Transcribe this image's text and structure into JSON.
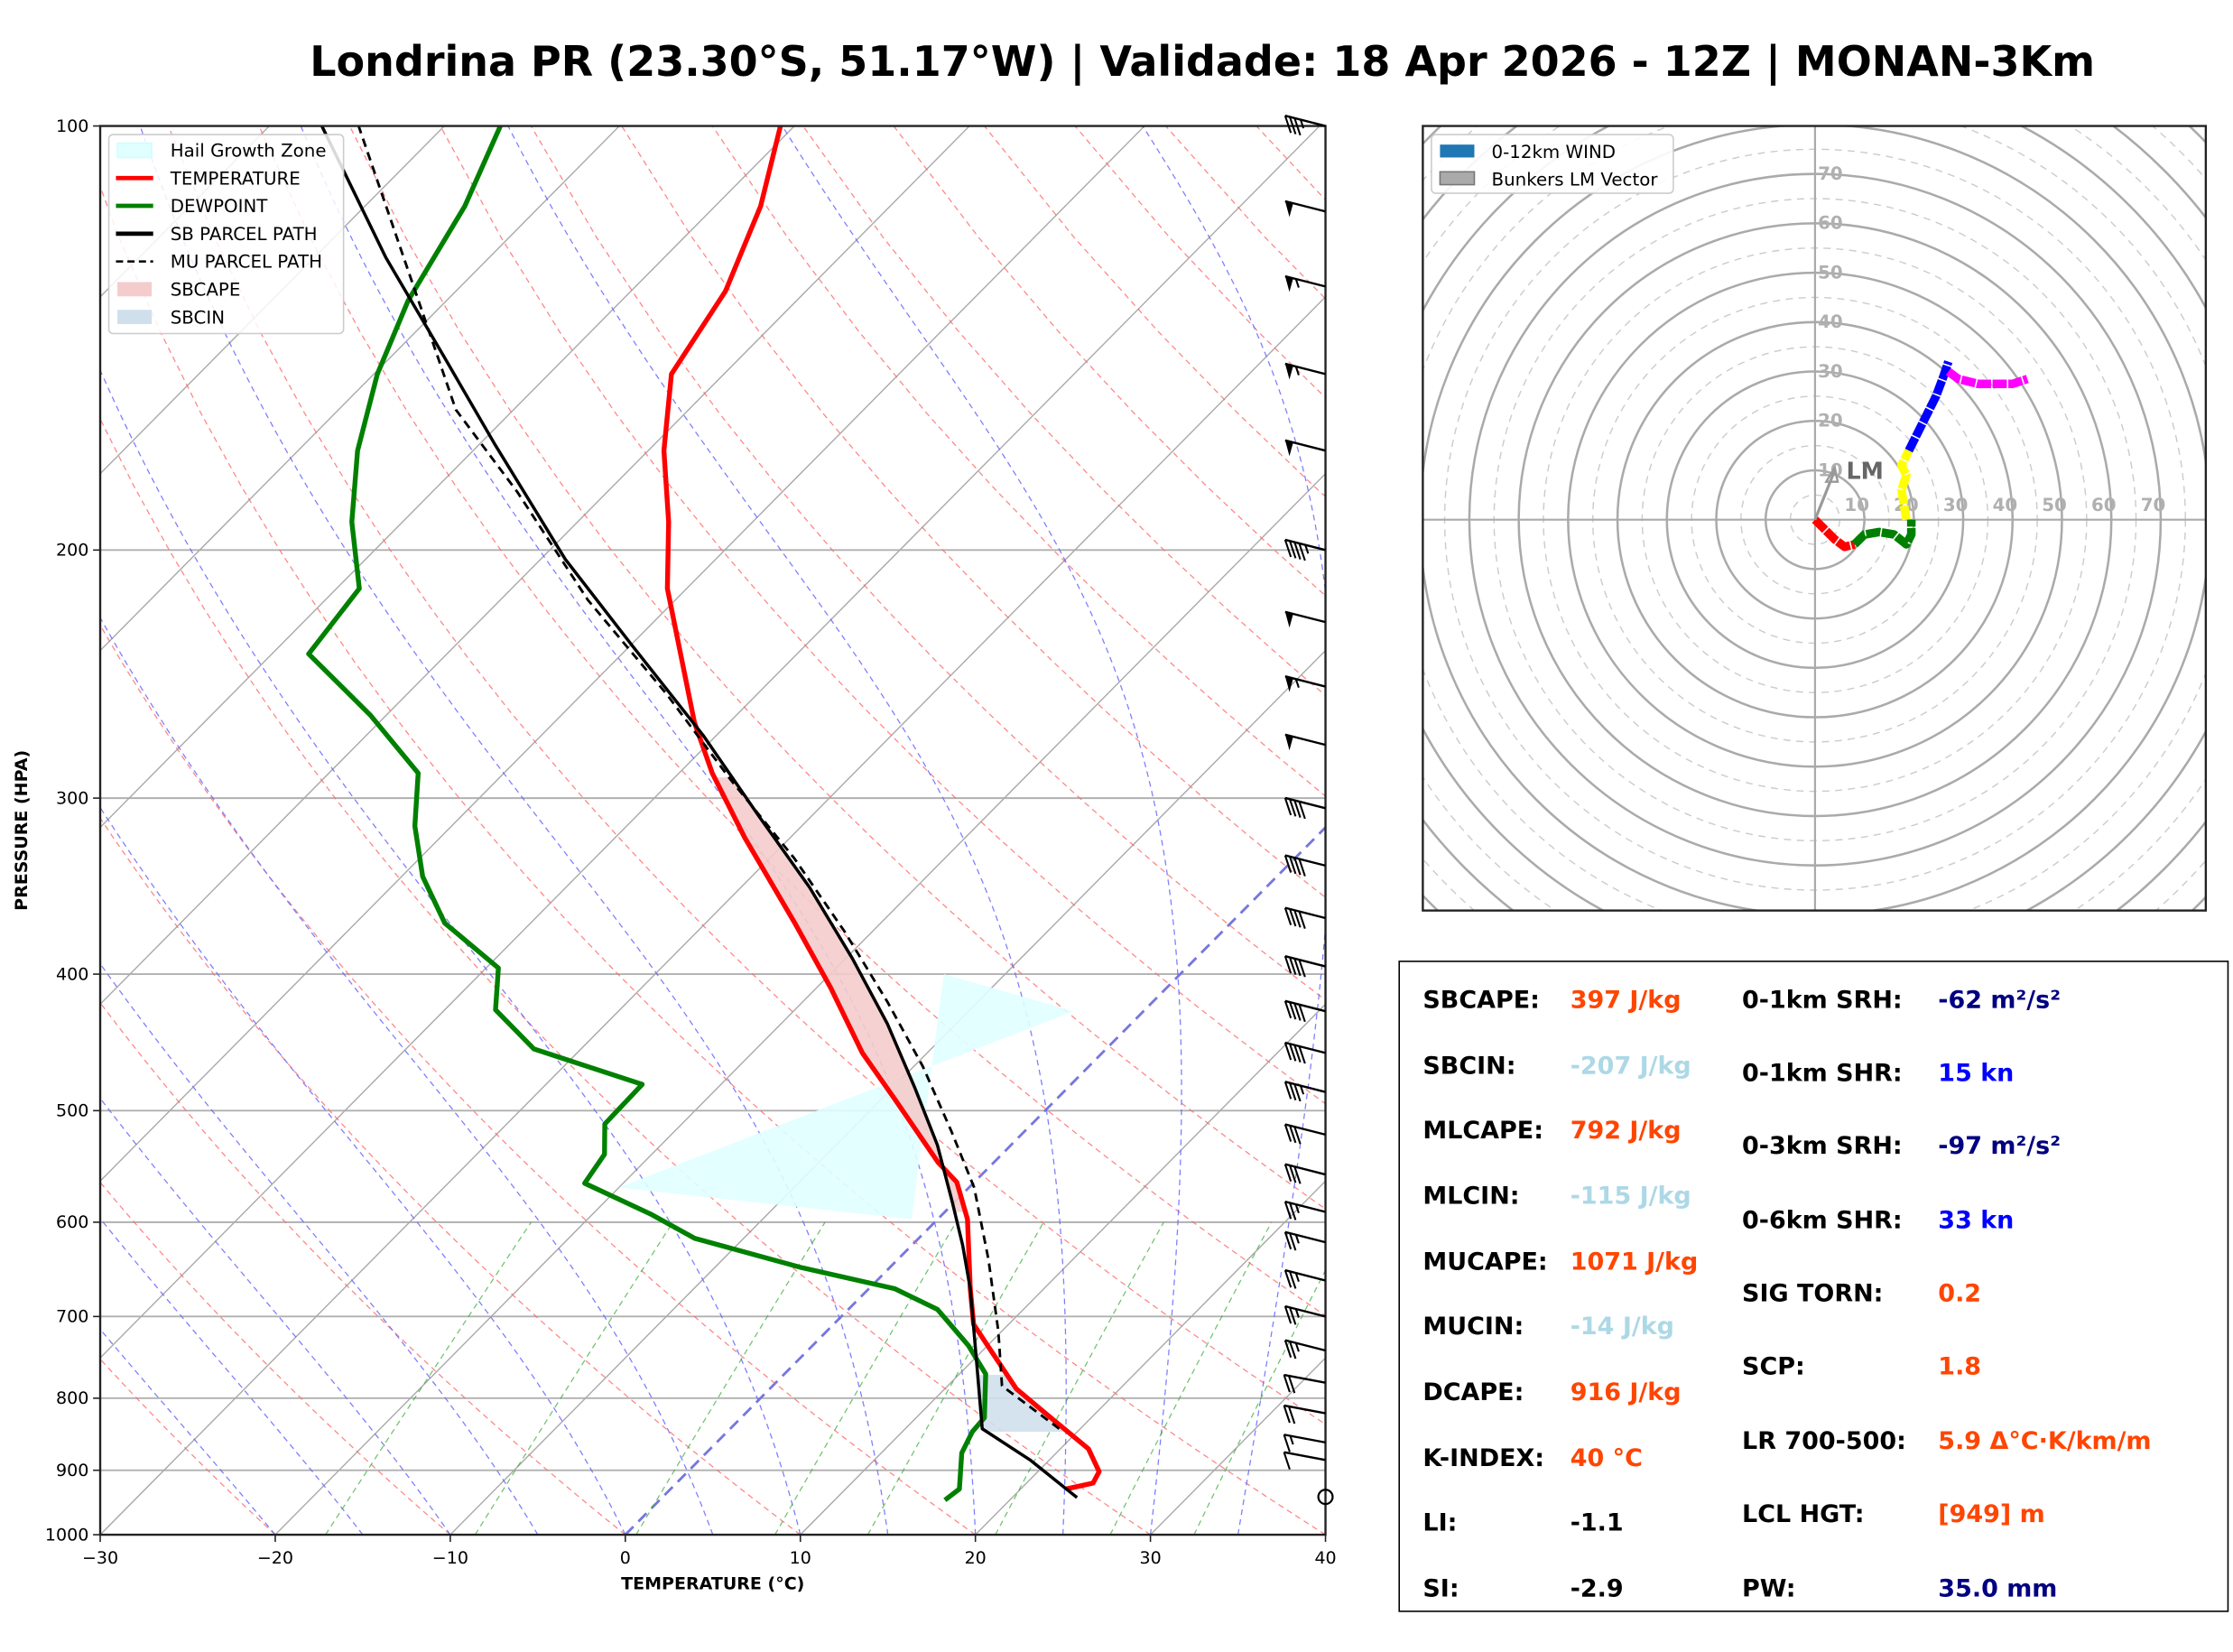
{
  "title": "Londrina PR (23.30°S, 51.17°W) | Validade: 18 Apr 2026 - 12Z | MONAN-3Km",
  "chart_data": [
    {
      "type": "line",
      "subtype": "skew-t log-p",
      "xlabel": "TEMPERATURE (°C)",
      "ylabel": "PRESSURE (HPA)",
      "xlim": [
        -30,
        40
      ],
      "ylim": [
        1000,
        100
      ],
      "yscale": "log",
      "xticks": [
        -30,
        -20,
        -10,
        0,
        10,
        20,
        30,
        40
      ],
      "xtick_labels": [
        "−30",
        "−20",
        "−10",
        "0",
        "10",
        "20",
        "30",
        "40"
      ],
      "yticks": [
        1000,
        900,
        800,
        700,
        600,
        500,
        400,
        300,
        200,
        100
      ],
      "ytick_labels": [
        "1000",
        "900",
        "800",
        "700",
        "600",
        "500",
        "400",
        "300",
        "200",
        "100"
      ],
      "grid": true,
      "legend_position": "top-left",
      "legend": [
        {
          "label": "Hail Growth Zone",
          "color": "#e0ffff",
          "kind": "patch"
        },
        {
          "label": "TEMPERATURE",
          "color": "#ff0000",
          "kind": "line"
        },
        {
          "label": "DEWPOINT",
          "color": "#008000",
          "kind": "line"
        },
        {
          "label": "SB PARCEL PATH",
          "color": "#000000",
          "kind": "line"
        },
        {
          "label": "MU PARCEL PATH",
          "color": "#000000",
          "kind": "dashed"
        },
        {
          "label": "SBCAPE",
          "color": "#f4cccc",
          "kind": "patch"
        },
        {
          "label": "SBCIN",
          "color": "#cfe0ec",
          "kind": "patch"
        }
      ],
      "series": [
        {
          "name": "TEMPERATURE",
          "color": "#ff0000",
          "p": [
            928,
            919,
            902,
            869,
            826,
            788,
            743,
            709,
            669,
            597,
            562,
            544,
            491,
            455,
            409,
            368,
            320,
            288,
            265,
            213,
            191,
            170,
            150,
            131,
            114,
            100
          ],
          "t": [
            22.6,
            23.8,
            23.5,
            21.6,
            17.7,
            14.1,
            10.7,
            8.0,
            5.8,
            1.7,
            -1.0,
            -3.2,
            -9.2,
            -13.7,
            -19.2,
            -24.9,
            -32.6,
            -38.1,
            -42.0,
            -51.1,
            -54.8,
            -59.1,
            -63.0,
            -64.6,
            -67.4,
            -70.8
          ]
        },
        {
          "name": "DEWPOINT",
          "color": "#008000",
          "p": [
            945,
            928,
            875,
            845,
            826,
            769,
            734,
            692,
            669,
            646,
            616,
            592,
            563,
            537,
            511,
            479,
            452,
            424,
            396,
            368,
            341,
            314,
            288,
            262,
            237,
            213,
            191,
            170,
            150,
            133,
            114,
            100
          ],
          "t": [
            16.3,
            16.5,
            14.6,
            14.0,
            13.9,
            11.5,
            8.9,
            5.1,
            1.5,
            -5.1,
            -12.8,
            -16.7,
            -22.2,
            -22.7,
            -24.4,
            -24.5,
            -32.7,
            -37.1,
            -39.3,
            -44.9,
            -48.8,
            -52.1,
            -54.9,
            -60.9,
            -67.9,
            -68.7,
            -72.9,
            -76.6,
            -79.8,
            -82.2,
            -84.3,
            -86.8
          ]
        },
        {
          "name": "SB PARCEL PATH",
          "color": "#000000",
          "p": [
            941,
            885,
            841,
            752,
            669,
            623,
            581,
            529,
            482,
            434,
            390,
            347,
            309,
            271,
            233,
            203,
            168,
            146,
            124,
            100
          ],
          "t": [
            23.7,
            18.9,
            14.4,
            10.2,
            5.8,
            2.9,
            -0.1,
            -4.2,
            -8.7,
            -13.9,
            -19.6,
            -26.1,
            -33.0,
            -40.7,
            -50.1,
            -58.6,
            -69.2,
            -76.9,
            -85.9,
            -97.0
          ]
        },
        {
          "name": "MU PARCEL PATH",
          "color": "#000000",
          "dashed": true,
          "p": [
            841,
            784,
            717,
            638,
            567,
            517,
            465,
            419,
            373,
            331,
            291,
            253,
            217,
            182,
            159,
            100
          ],
          "t": [
            18.8,
            13.1,
            9.8,
            5.2,
            0.3,
            -4.2,
            -9.5,
            -15.1,
            -21.6,
            -28.6,
            -36.7,
            -45.2,
            -55.0,
            -65.1,
            -73.3,
            -94.9
          ]
        }
      ],
      "hail_growth_zone": {
        "t_range": [
          -30,
          -10
        ],
        "p_top": 400,
        "p_bottom": 590
      },
      "sbcape_region": {
        "p_range": [
          590,
          290
        ]
      },
      "sbcin_region": {
        "p_range": [
          845,
          770
        ]
      },
      "wind_barbs": [
        {
          "p": 100,
          "speed_kn": 35
        },
        {
          "p": 115,
          "speed_kn": 50
        },
        {
          "p": 130,
          "speed_kn": 55
        },
        {
          "p": 150,
          "speed_kn": 55
        },
        {
          "p": 170,
          "speed_kn": 50
        },
        {
          "p": 200,
          "speed_kn": 45
        },
        {
          "p": 225,
          "speed_kn": 50
        },
        {
          "p": 250,
          "speed_kn": 55
        },
        {
          "p": 275,
          "speed_kn": 50
        },
        {
          "p": 305,
          "speed_kn": 40
        },
        {
          "p": 335,
          "speed_kn": 40
        },
        {
          "p": 365,
          "speed_kn": 40
        },
        {
          "p": 395,
          "speed_kn": 40
        },
        {
          "p": 425,
          "speed_kn": 40
        },
        {
          "p": 455,
          "speed_kn": 40
        },
        {
          "p": 485,
          "speed_kn": 35
        },
        {
          "p": 520,
          "speed_kn": 30
        },
        {
          "p": 555,
          "speed_kn": 30
        },
        {
          "p": 590,
          "speed_kn": 25
        },
        {
          "p": 620,
          "speed_kn": 25
        },
        {
          "p": 660,
          "speed_kn": 25
        },
        {
          "p": 700,
          "speed_kn": 25
        },
        {
          "p": 740,
          "speed_kn": 25
        },
        {
          "p": 780,
          "speed_kn": 20
        },
        {
          "p": 820,
          "speed_kn": 20
        },
        {
          "p": 860,
          "speed_kn": 15
        },
        {
          "p": 885,
          "speed_kn": 10
        },
        {
          "p": 940,
          "speed_kn": 0
        }
      ]
    },
    {
      "type": "line",
      "subtype": "hodograph",
      "units": "kn",
      "rings": [
        10,
        20,
        30,
        40,
        50,
        60,
        70
      ],
      "ring_labels": [
        "10",
        "20",
        "30",
        "40",
        "50",
        "60",
        "70"
      ],
      "range": [
        -80,
        80
      ],
      "legend_position": "top-left",
      "legend": [
        {
          "label": "0-12km WIND",
          "color": "#1f77b4"
        },
        {
          "label": "Bunkers LM Vector",
          "color": "#aaaaaa"
        }
      ],
      "lm_vector": {
        "u": 4,
        "v": 10,
        "label": "LM"
      },
      "segments": [
        {
          "color": "#ff0000",
          "u": [
            0,
            2,
            4,
            6,
            8
          ],
          "v": [
            0,
            -2,
            -4,
            -5.5,
            -5
          ]
        },
        {
          "color": "#008000",
          "u": [
            8,
            10,
            13,
            16,
            18.5,
            19.5,
            19.5
          ],
          "v": [
            -5,
            -3,
            -2.5,
            -3,
            -5,
            -3,
            0
          ]
        },
        {
          "color": "#ffff00",
          "u": [
            18.5,
            18,
            17.5,
            18.5,
            17.5,
            19
          ],
          "v": [
            0,
            3,
            6,
            9,
            11,
            14
          ]
        },
        {
          "color": "#0000ff",
          "u": [
            19,
            21,
            23,
            24.5,
            26,
            27
          ],
          "v": [
            14,
            18,
            22,
            25,
            29,
            32
          ]
        },
        {
          "color": "#ff00ff",
          "u": [
            27,
            29,
            33,
            37,
            40,
            43
          ],
          "v": [
            30,
            28.5,
            27.5,
            27.5,
            27.5,
            28.5
          ]
        }
      ]
    }
  ],
  "stats": {
    "left": [
      {
        "label": "SBCAPE:",
        "value": "397 J/kg",
        "color": "#ff4500"
      },
      {
        "label": "SBCIN:",
        "value": "-207 J/kg",
        "color": "#add8e6"
      },
      {
        "label": "MLCAPE:",
        "value": "792 J/kg",
        "color": "#ff4500"
      },
      {
        "label": "MLCIN:",
        "value": "-115 J/kg",
        "color": "#add8e6"
      },
      {
        "label": "MUCAPE:",
        "value": "1071 J/kg",
        "color": "#ff4500"
      },
      {
        "label": "MUCIN:",
        "value": "-14 J/kg",
        "color": "#add8e6"
      },
      {
        "label": "DCAPE:",
        "value": "916 J/kg",
        "color": "#ff4500"
      },
      {
        "label": "K-INDEX:",
        "value": "40 °C",
        "color": "#ff4500"
      },
      {
        "label": "LI:",
        "value": "-1.1",
        "color": "#000000"
      },
      {
        "label": "SI:",
        "value": "-2.9",
        "color": "#000000"
      }
    ],
    "right": [
      {
        "label": "0-1km SRH:",
        "value": "-62 m²/s²",
        "color": "#000080"
      },
      {
        "label": "0-1km SHR:",
        "value": "15 kn",
        "color": "#0000ff"
      },
      {
        "label": "0-3km SRH:",
        "value": "-97 m²/s²",
        "color": "#000080"
      },
      {
        "label": "0-6km SHR:",
        "value": "33 kn",
        "color": "#0000ff"
      },
      {
        "label": "SIG TORN:",
        "value": "0.2",
        "color": "#ff4500"
      },
      {
        "label": "SCP:",
        "value": "1.8",
        "color": "#ff4500"
      },
      {
        "label": "LR 700-500:",
        "value": "5.9 Δ°C·K/km/m",
        "color": "#ff4500"
      },
      {
        "label": "LCL HGT:",
        "value": "[949] m",
        "color": "#ff4500"
      },
      {
        "label": "PW:",
        "value": "35.0 mm",
        "color": "#000080"
      }
    ]
  }
}
